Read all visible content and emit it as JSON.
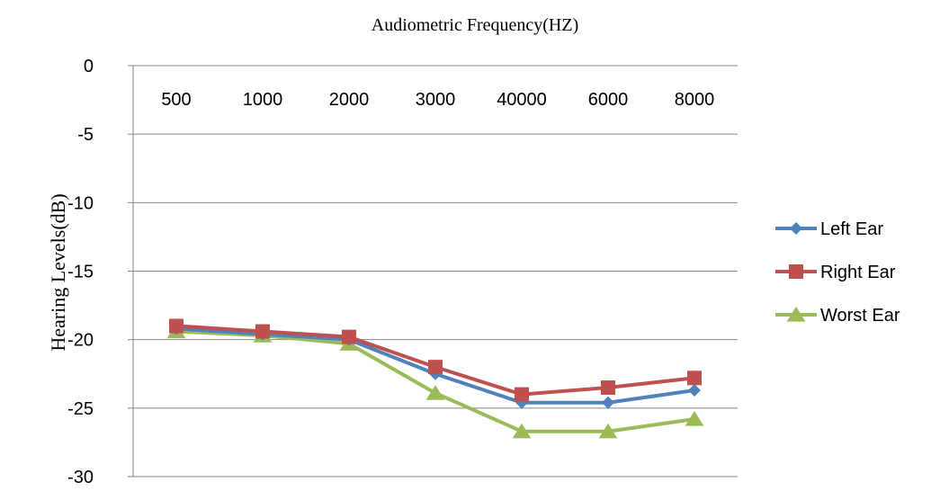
{
  "chart_data": {
    "type": "line",
    "title": "Audiometric Frequency(HZ)",
    "xlabel": "",
    "ylabel": "Hearing Levels(dB)",
    "categories": [
      "500",
      "1000",
      "2000",
      "3000",
      "40000",
      "6000",
      "8000"
    ],
    "ylim": [
      -30,
      0
    ],
    "yticks": [
      0,
      -5,
      -10,
      -15,
      -20,
      -25,
      -30
    ],
    "grid": true,
    "category_axis_position": "top",
    "legend_position": "right",
    "series": [
      {
        "name": "Left Ear",
        "values": [
          -19.2,
          -19.6,
          -20.0,
          -22.5,
          -24.6,
          -24.6,
          -23.7
        ],
        "color": "#4F81BD",
        "marker": "diamond"
      },
      {
        "name": "Right Ear",
        "values": [
          -19.0,
          -19.4,
          -19.8,
          -22.0,
          -24.0,
          -23.5,
          -22.8
        ],
        "color": "#C0504D",
        "marker": "square"
      },
      {
        "name": "Worst Ear",
        "values": [
          -19.4,
          -19.7,
          -20.3,
          -23.9,
          -26.7,
          -26.7,
          -25.8
        ],
        "color": "#9BBB59",
        "marker": "triangle"
      }
    ]
  }
}
